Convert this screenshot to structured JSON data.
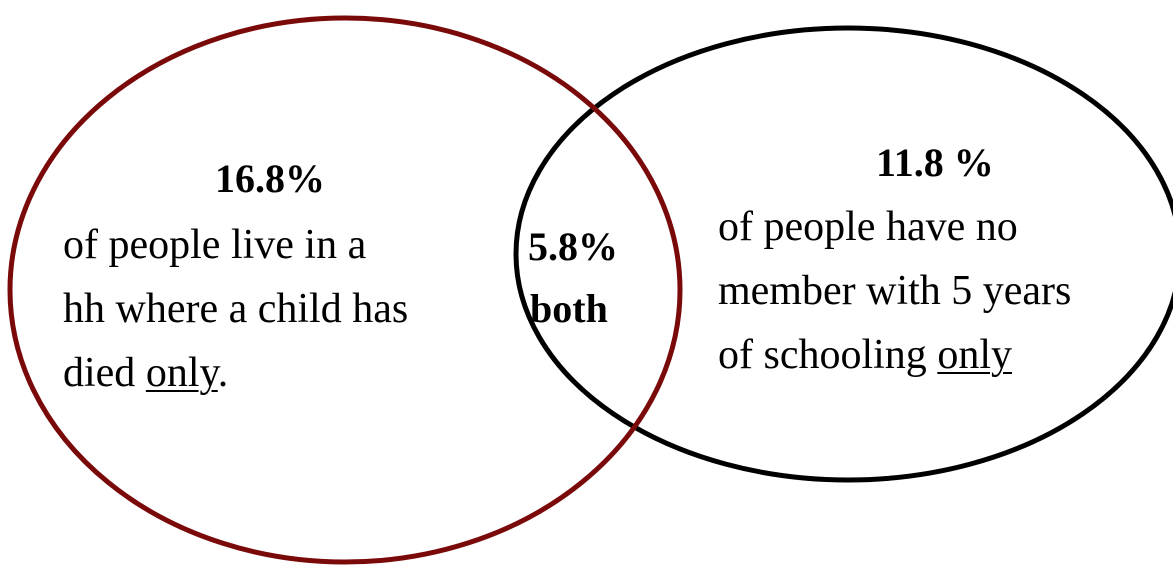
{
  "colors": {
    "left_circle": "#7a0a0a",
    "right_circle": "#000000",
    "text": "#000000"
  },
  "left": {
    "percent": "16.8%",
    "line1": "of people live in a",
    "line2": "hh where a child has",
    "line3_pre": "died ",
    "line3_emph": "only",
    "line3_post": "."
  },
  "overlap": {
    "percent": "5.8%",
    "label": "both"
  },
  "right": {
    "percent": "11.8 %",
    "line1": "of people have no",
    "line2": "member with 5 years",
    "line3_pre": "of schooling ",
    "line3_emph": "only"
  }
}
